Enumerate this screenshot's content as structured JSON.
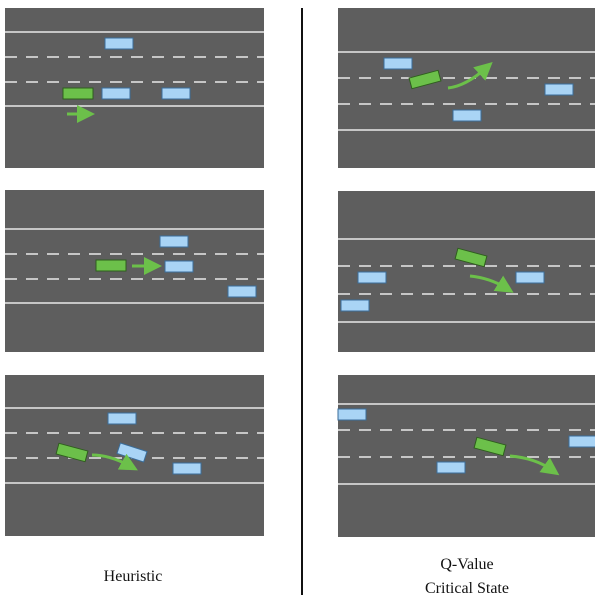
{
  "labels": {
    "left": "Heuristic",
    "right": [
      "Q-Value",
      "Critical State"
    ]
  }
}
